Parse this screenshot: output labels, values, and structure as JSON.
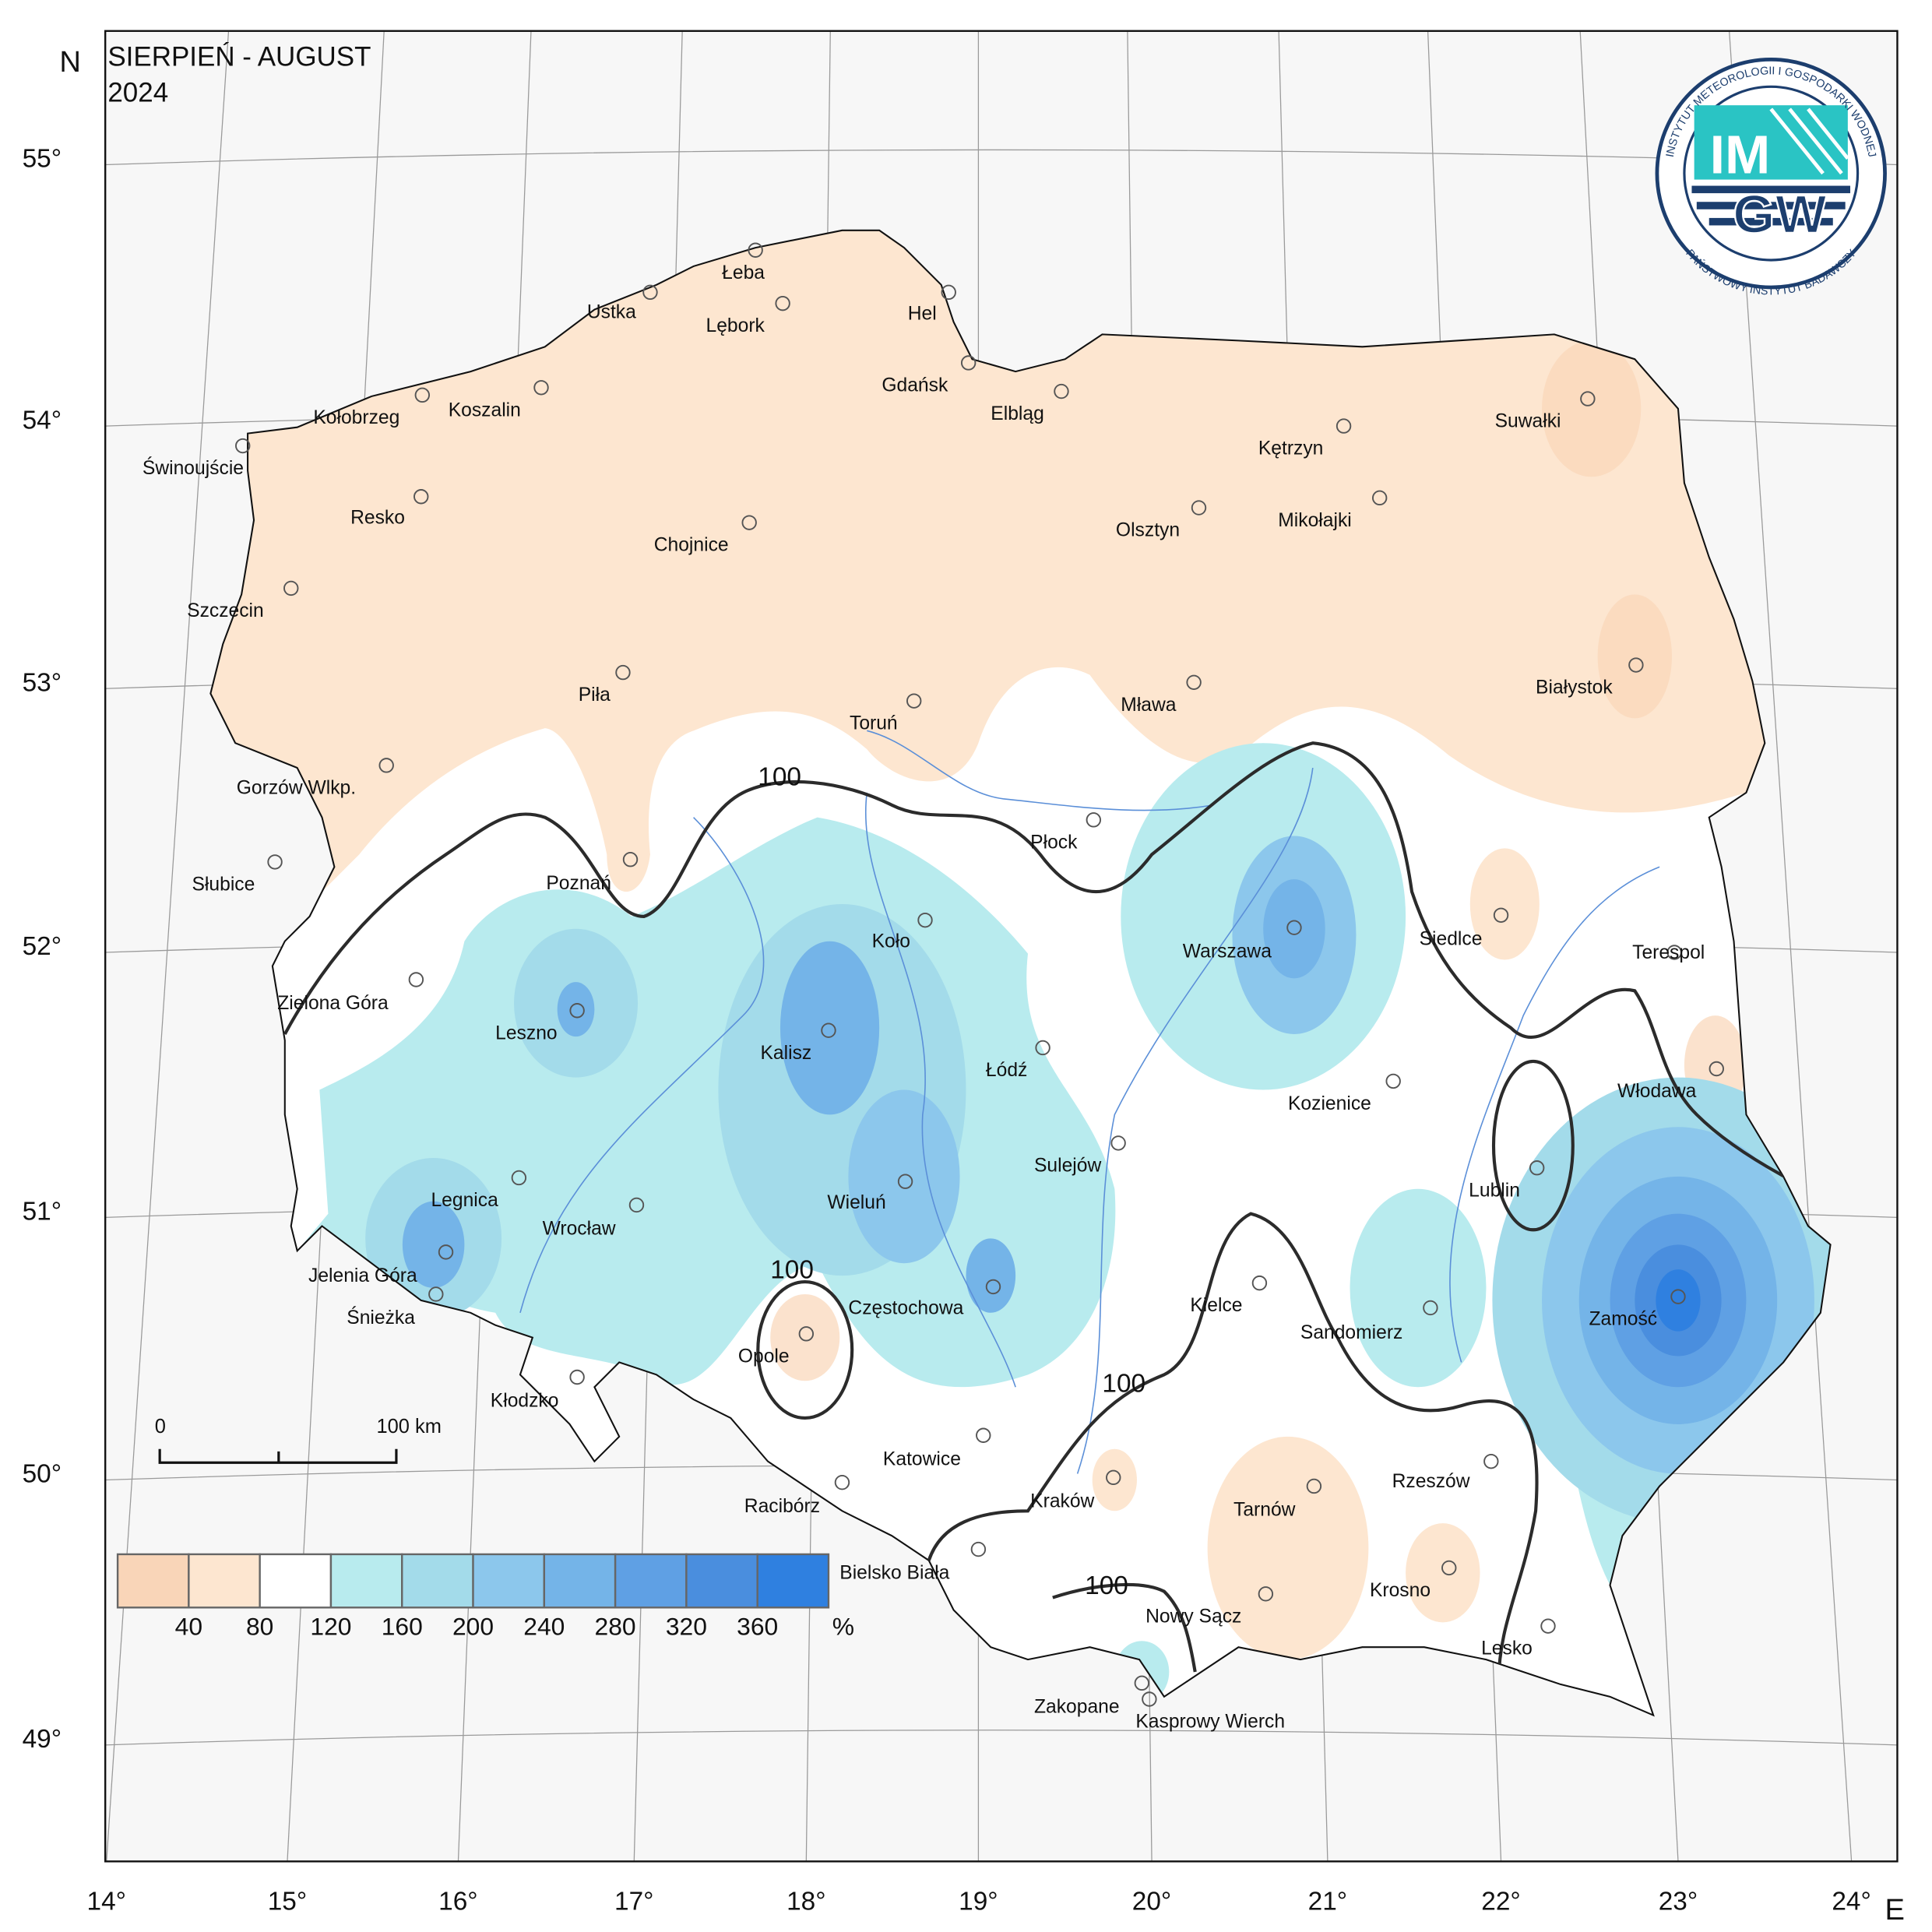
{
  "header": {
    "title": "SIERPIEŃ - AUGUST",
    "year": "2024"
  },
  "axes": {
    "north": "N",
    "east": "E",
    "latitudes": [
      "55°",
      "54°",
      "53°",
      "52°",
      "51°",
      "50°",
      "49°"
    ],
    "longitudes": [
      "14°",
      "15°",
      "16°",
      "17°",
      "18°",
      "19°",
      "20°",
      "21°",
      "22°",
      "23°",
      "24°"
    ]
  },
  "stations": [
    "Łeba",
    "Ustka",
    "Lębork",
    "Hel",
    "Gdańsk",
    "Elbląg",
    "Kołobrzeg",
    "Koszalin",
    "Świnoujście",
    "Resko",
    "Chojnice",
    "Olsztyn",
    "Kętrzyn",
    "Mikołajki",
    "Suwałki",
    "Szczecin",
    "Piła",
    "Toruń",
    "Mława",
    "Białystok",
    "Gorzów Wlkp.",
    "Płock",
    "Słubice",
    "Poznań",
    "Koło",
    "Warszawa",
    "Siedlce",
    "Terespol",
    "Zielona Góra",
    "Leszno",
    "Kalisz",
    "Łódź",
    "Włodawa",
    "Kozienice",
    "Sulejów",
    "Lublin",
    "Legnica",
    "Wieluń",
    "Wrocław",
    "Jelenia Góra",
    "Śnieżka",
    "Kielce",
    "Częstochowa",
    "Zamość",
    "Sandomierz",
    "Opole",
    "Kłodzko",
    "Katowice",
    "Kraków",
    "Rzeszów",
    "Racibórz",
    "Tarnów",
    "Bielsko Biała",
    "Krosno",
    "Nowy Sącz",
    "Lesko",
    "Zakopane",
    "Kasprowy Wierch"
  ],
  "contour_labels": [
    "100",
    "100",
    "100",
    "100"
  ],
  "legend": {
    "labels": [
      "40",
      "80",
      "120",
      "160",
      "200",
      "240",
      "280",
      "320",
      "360"
    ],
    "unit": "%",
    "colors": [
      "#f9d5b8",
      "#fde6d0",
      "#ffffff",
      "#b8ebee",
      "#a3dbea",
      "#8cc7ec",
      "#74b4e8",
      "#5fa0e4",
      "#4a8ede",
      "#2f80e0"
    ]
  },
  "scale_bar": {
    "start": "0",
    "end": "100 km"
  },
  "logo": {
    "top": "IM",
    "bottom": "GW",
    "ring_top": "INSTYTUT METEOROLOGII I GOSPODARKI WODNEJ",
    "ring_bottom": "PAŃSTWOWY INSTYTUT BADAWCZY"
  }
}
